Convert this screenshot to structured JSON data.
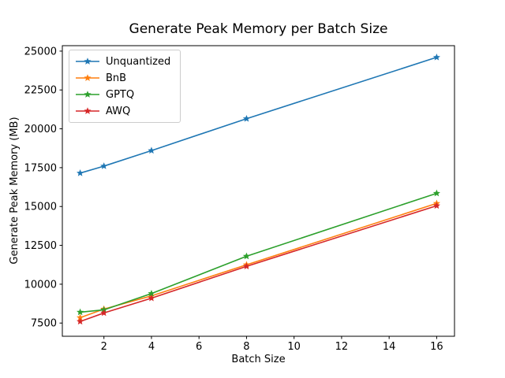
{
  "figure": {
    "title": "Generate Peak Memory per Batch Size",
    "xlabel": "Batch Size",
    "ylabel": "Generate Peak Memory (MB)",
    "background_color": "#ffffff",
    "axis_color": "#000000",
    "legend_position": "upper left",
    "legend_border_color": "#cccccc"
  },
  "chart_data": {
    "type": "line",
    "title": "Generate Peak Memory per Batch Size",
    "xlabel": "Batch Size",
    "ylabel": "Generate Peak Memory (MB)",
    "x": [
      1,
      2,
      4,
      8,
      16
    ],
    "series": [
      {
        "name": "Unquantized",
        "color": "#1f77b4",
        "marker": "star",
        "values": [
          17150,
          17600,
          18600,
          20650,
          24600
        ]
      },
      {
        "name": "BnB",
        "color": "#ff7f0e",
        "marker": "star",
        "values": [
          7850,
          8400,
          9250,
          11250,
          15200
        ]
      },
      {
        "name": "GPTQ",
        "color": "#2ca02c",
        "marker": "star",
        "values": [
          8200,
          8350,
          9400,
          11800,
          15850
        ]
      },
      {
        "name": "AWQ",
        "color": "#d62728",
        "marker": "star",
        "values": [
          7600,
          8150,
          9100,
          11150,
          15050
        ]
      }
    ],
    "xticks": [
      2,
      4,
      6,
      8,
      10,
      12,
      14,
      16
    ],
    "yticks": [
      7500,
      10000,
      12500,
      15000,
      17500,
      20000,
      22500,
      25000
    ],
    "xlim": [
      0.25,
      16.75
    ],
    "ylim": [
      6650,
      25350
    ],
    "grid": false,
    "legend_position": "upper left"
  }
}
